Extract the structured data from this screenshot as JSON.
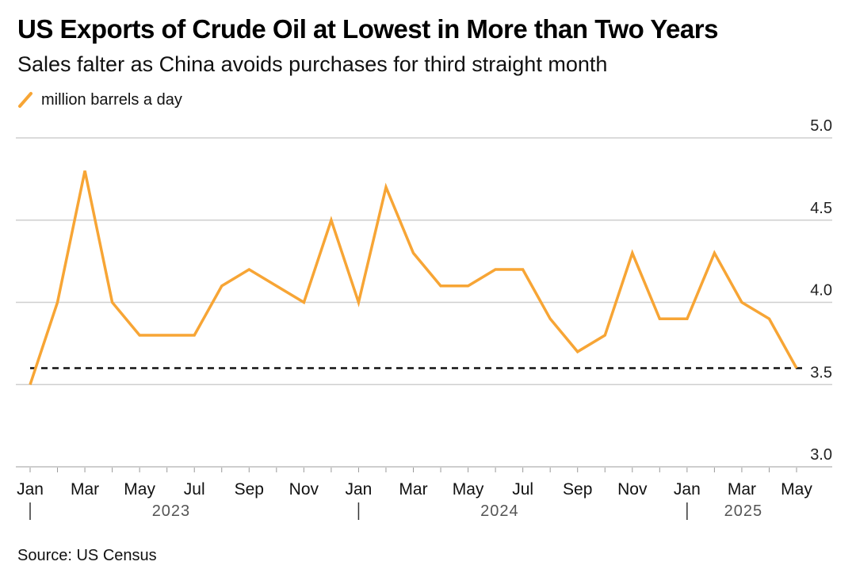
{
  "header": {
    "title": "US Exports of Crude Oil at Lowest in More than Two Years",
    "subtitle": "Sales falter as China avoids purchases for third straight month"
  },
  "footer": {
    "source": "Source: US Census"
  },
  "colors": {
    "series": "#f7a535",
    "grid": "#cfcfcf",
    "reference": "#111111"
  },
  "chart_data": {
    "type": "line",
    "x": [
      "2023-01",
      "2023-02",
      "2023-03",
      "2023-04",
      "2023-05",
      "2023-06",
      "2023-07",
      "2023-08",
      "2023-09",
      "2023-10",
      "2023-11",
      "2023-12",
      "2024-01",
      "2024-02",
      "2024-03",
      "2024-04",
      "2024-05",
      "2024-06",
      "2024-07",
      "2024-08",
      "2024-09",
      "2024-10",
      "2024-11",
      "2024-12",
      "2025-01",
      "2025-02",
      "2025-03",
      "2025-04",
      "2025-05"
    ],
    "series": [
      {
        "name": "million barrels a day",
        "values": [
          3.5,
          4.0,
          4.8,
          4.0,
          3.8,
          3.8,
          3.8,
          4.1,
          4.2,
          4.1,
          4.0,
          4.5,
          4.0,
          4.7,
          4.3,
          4.1,
          4.1,
          4.2,
          4.2,
          3.9,
          3.7,
          3.8,
          4.3,
          3.9,
          3.9,
          4.3,
          4.0,
          3.9,
          3.6
        ]
      }
    ],
    "reference_line": {
      "y": 3.6,
      "style": "dashed"
    },
    "ylim": [
      3.0,
      5.0
    ],
    "y_ticks": [
      "3.0",
      "3.5",
      "4.0",
      "4.5",
      "5.0"
    ],
    "x_tick_labels": [
      {
        "index": 0,
        "label": "Jan"
      },
      {
        "index": 2,
        "label": "Mar"
      },
      {
        "index": 4,
        "label": "May"
      },
      {
        "index": 6,
        "label": "Jul"
      },
      {
        "index": 8,
        "label": "Sep"
      },
      {
        "index": 10,
        "label": "Nov"
      },
      {
        "index": 12,
        "label": "Jan"
      },
      {
        "index": 14,
        "label": "Mar"
      },
      {
        "index": 16,
        "label": "May"
      },
      {
        "index": 18,
        "label": "Jul"
      },
      {
        "index": 20,
        "label": "Sep"
      },
      {
        "index": 22,
        "label": "Nov"
      },
      {
        "index": 24,
        "label": "Jan"
      },
      {
        "index": 26,
        "label": "Mar"
      },
      {
        "index": 28,
        "label": "May"
      }
    ],
    "years": [
      {
        "label": "2023",
        "start": 0,
        "end": 11
      },
      {
        "label": "2024",
        "start": 12,
        "end": 23
      },
      {
        "label": "2025",
        "start": 24,
        "end": 28
      }
    ],
    "y_axis_position": "right",
    "grid": true,
    "legend_position": "top-left"
  }
}
